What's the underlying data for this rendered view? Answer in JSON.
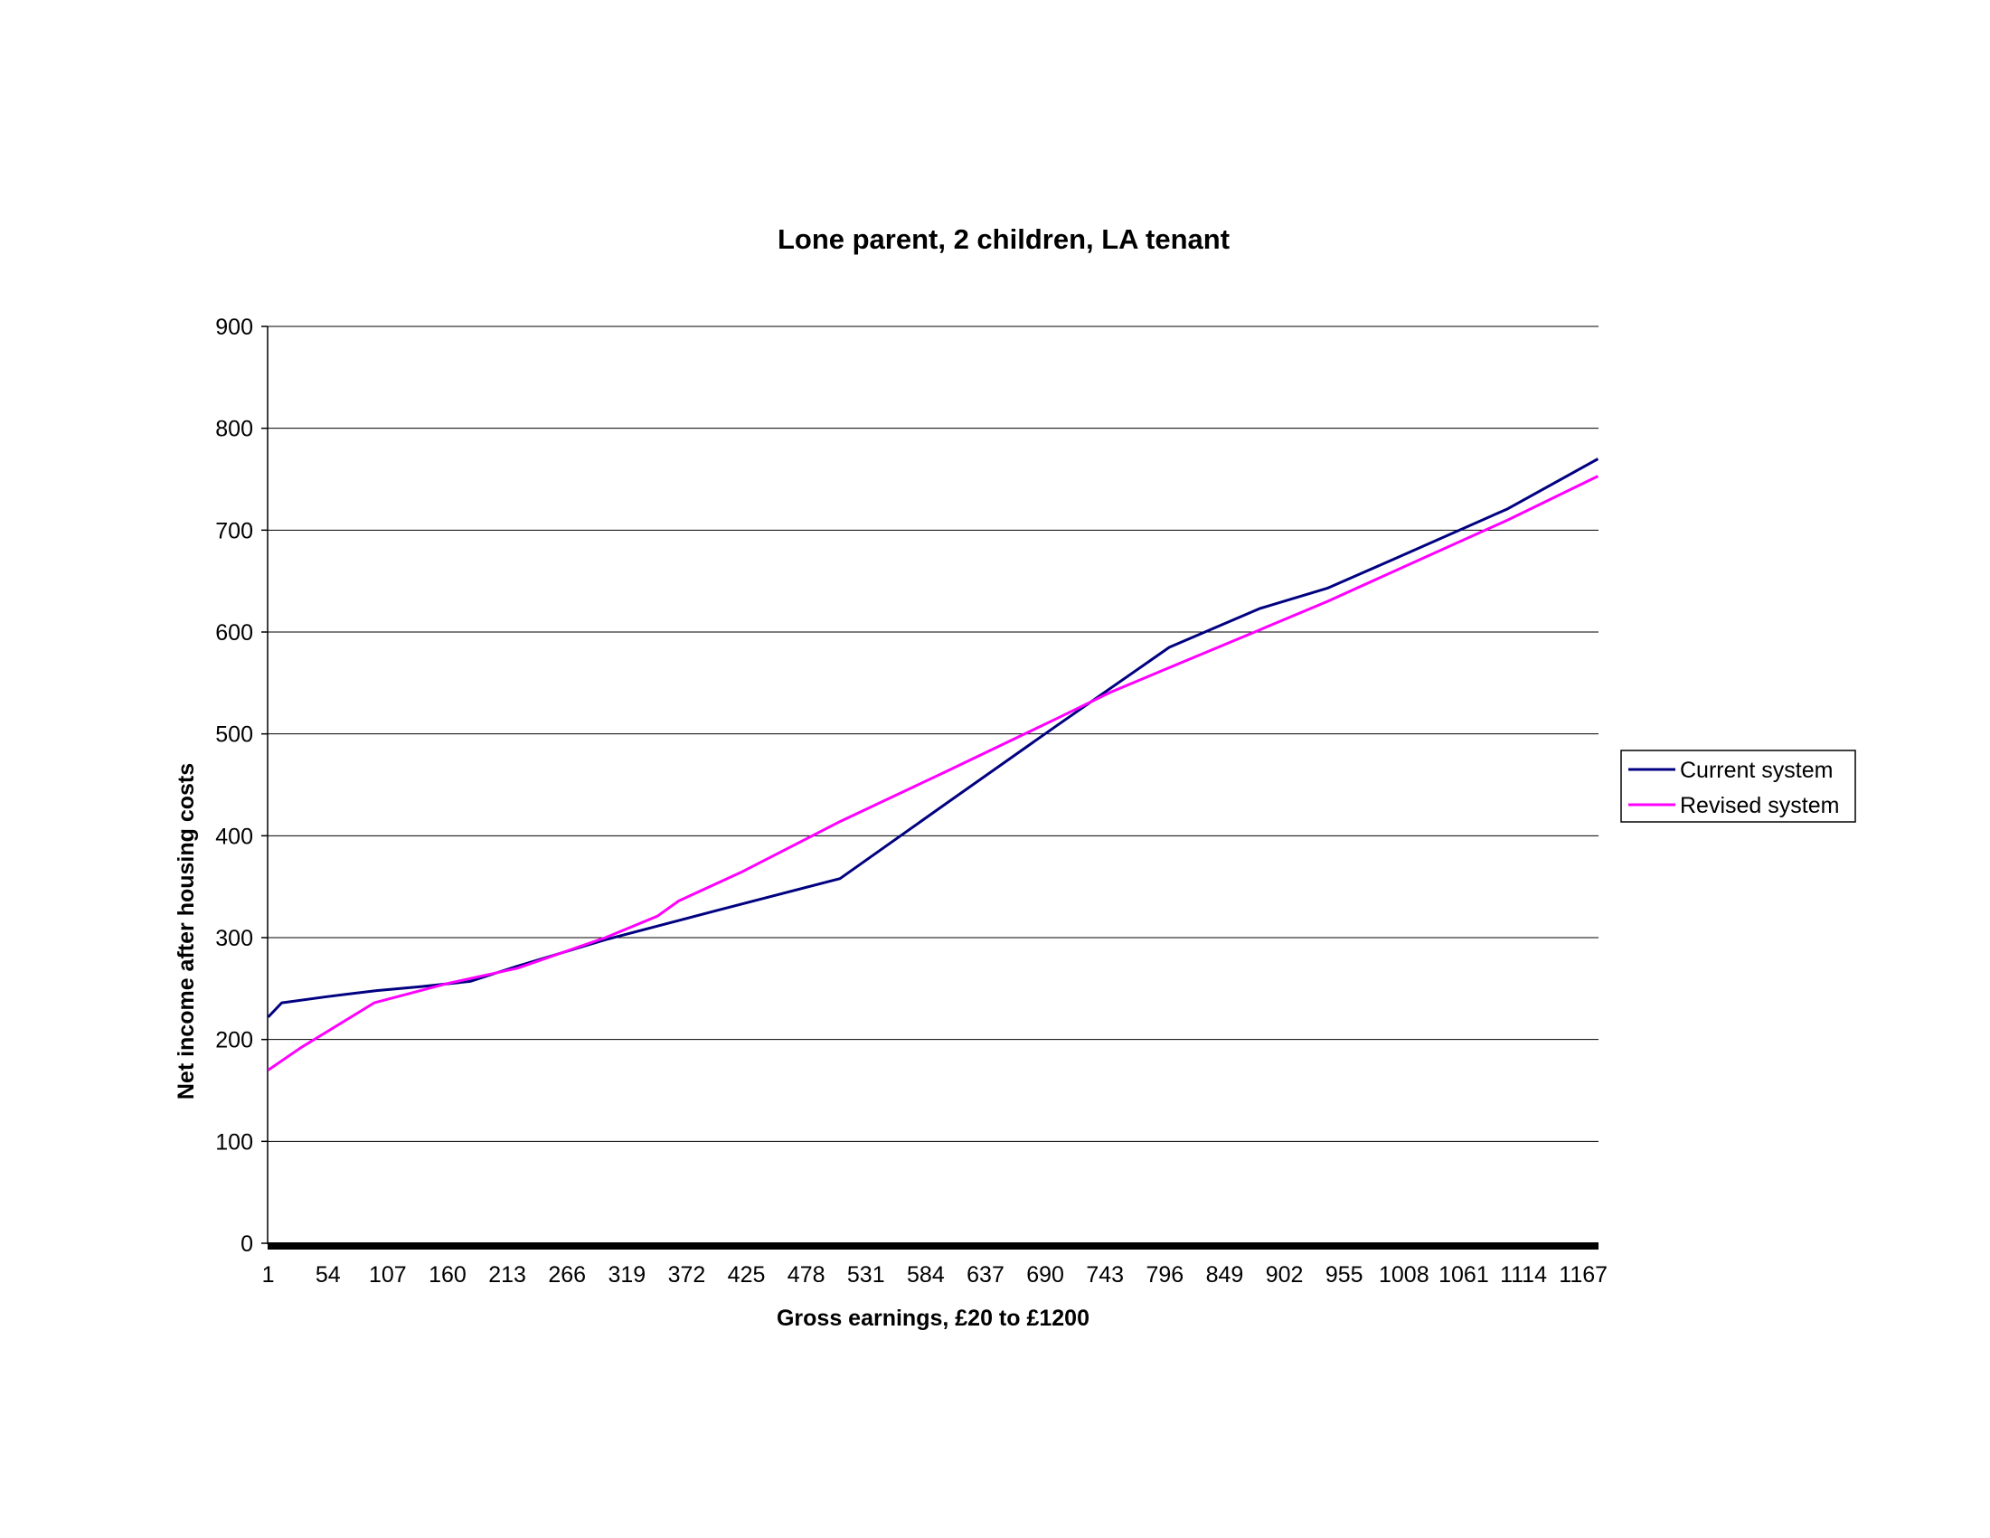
{
  "chart_data": {
    "type": "line",
    "title": "Lone parent, 2 children, LA tenant",
    "xlabel": "Gross earnings, £20 to £1200",
    "ylabel": "Net income after housing costs",
    "ylim": [
      0,
      900
    ],
    "y_ticks": [
      "0",
      "100",
      "200",
      "300",
      "400",
      "500",
      "600",
      "700",
      "800",
      "900"
    ],
    "x_category_count": 1180,
    "x_tick_labels": [
      "1",
      "54",
      "107",
      "160",
      "213",
      "266",
      "319",
      "372",
      "425",
      "478",
      "531",
      "584",
      "637",
      "690",
      "743",
      "796",
      "849",
      "902",
      "955",
      "1008",
      "1061",
      "1114",
      "1167"
    ],
    "grid": "horizontal",
    "legend_position": "right",
    "series": [
      {
        "name": "Current system",
        "color": "#000080",
        "x": [
          1,
          13,
          53,
          97,
          137,
          180,
          222,
          300,
          400,
          508,
          600,
          700,
          800,
          880,
          940,
          1000,
          1100,
          1180
        ],
        "y": [
          222,
          236,
          242,
          248,
          252,
          257,
          272,
          298,
          327,
          358,
          430,
          508,
          585,
          623,
          643,
          672,
          721,
          770
        ]
      },
      {
        "name": "Revised system",
        "color": "#FF00FF",
        "x": [
          1,
          30,
          95,
          160,
          222,
          300,
          346,
          365,
          420,
          508,
          600,
          700,
          748,
          800,
          880,
          940,
          1000,
          1100,
          1180
        ],
        "y": [
          170,
          192,
          236,
          255,
          270,
          300,
          321,
          336,
          364,
          414,
          462,
          515,
          541,
          565,
          602,
          630,
          660,
          710,
          753
        ]
      }
    ]
  }
}
